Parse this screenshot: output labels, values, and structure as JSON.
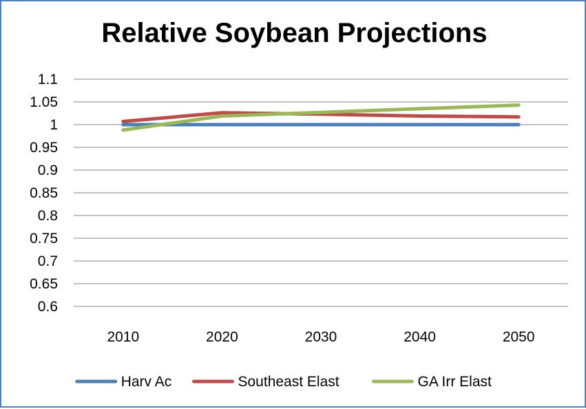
{
  "chart_data": {
    "type": "line",
    "title": "Relative Soybean Projections",
    "xlabel": "",
    "ylabel": "",
    "categories": [
      "2010",
      "2020",
      "2030",
      "2040",
      "2050"
    ],
    "ylim": [
      0.6,
      1.1
    ],
    "yticks": [
      "0.6",
      "0.65",
      "0.7",
      "0.75",
      "0.8",
      "0.85",
      "0.9",
      "0.95",
      "1",
      "1.05",
      "1.1"
    ],
    "grid": true,
    "legend_position": "bottom",
    "series": [
      {
        "name": "Harv Ac",
        "color": "#4a7ebb",
        "values": [
          1.0,
          1.0,
          1.0,
          1.0,
          1.0
        ]
      },
      {
        "name": "Southeast Elast",
        "color": "#be4b48",
        "values": [
          1.007,
          1.026,
          1.023,
          1.019,
          1.017
        ]
      },
      {
        "name": "GA Irr Elast",
        "color": "#98b954",
        "values": [
          0.988,
          1.019,
          1.027,
          1.035,
          1.043
        ]
      }
    ]
  }
}
